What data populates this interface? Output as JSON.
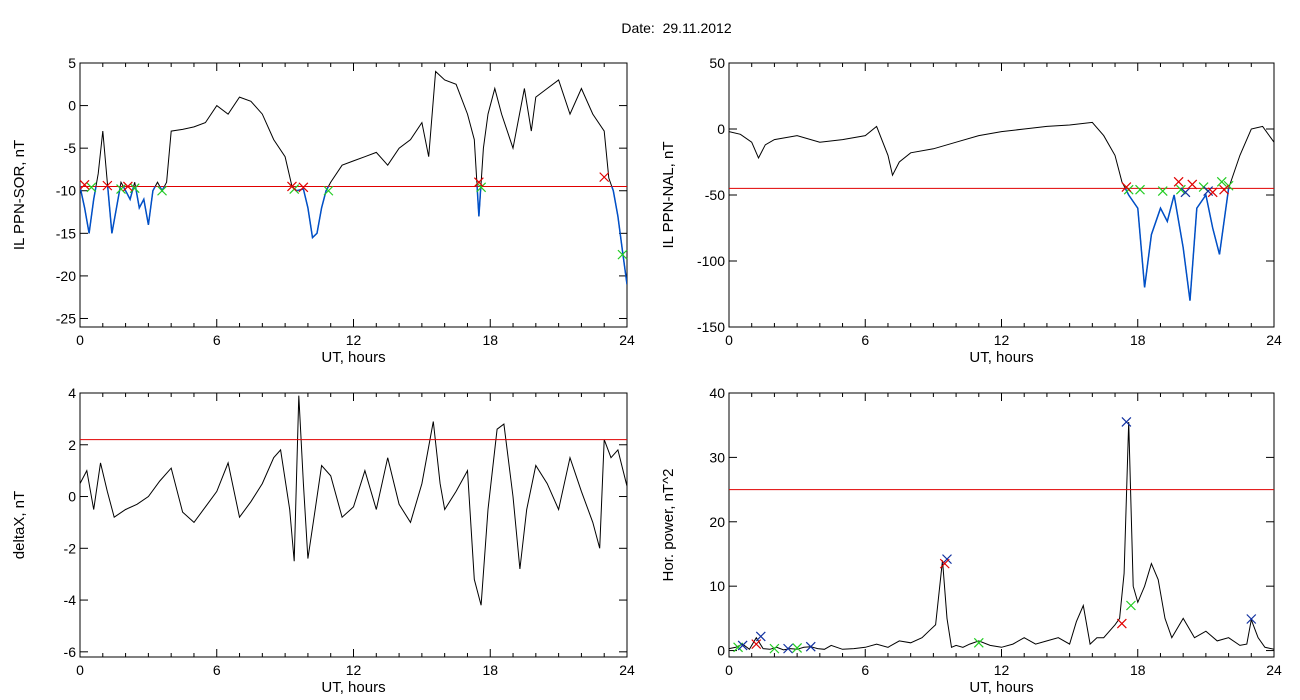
{
  "header": {
    "title": "Date:  29.11.2012"
  },
  "colors": {
    "trace": "#000000",
    "threshold": "#e00000",
    "highlight": "#0050c8",
    "marker_red": "#e00000",
    "marker_green": "#22cc22",
    "marker_blue": "#1030a0"
  },
  "chart_data": [
    {
      "type": "line",
      "name": "IL PPN-SOR",
      "xlabel": "UT, hours",
      "ylabel": "IL PPN-SOR, nT",
      "xlim": [
        0,
        24
      ],
      "ylim": [
        -26,
        5
      ],
      "xticks": [
        0,
        6,
        12,
        18,
        24
      ],
      "yticks": [
        5,
        0,
        -5,
        -10,
        -15,
        -20,
        -25
      ],
      "threshold": -9.5,
      "x": [
        0,
        0.2,
        0.4,
        0.6,
        0.8,
        1.0,
        1.2,
        1.4,
        1.6,
        1.8,
        2.0,
        2.2,
        2.4,
        2.6,
        2.8,
        3.0,
        3.2,
        3.4,
        3.6,
        3.8,
        4.0,
        4.5,
        5.0,
        5.5,
        6.0,
        6.5,
        7.0,
        7.5,
        8.0,
        8.5,
        9.0,
        9.3,
        9.5,
        9.8,
        10.0,
        10.2,
        10.4,
        10.6,
        10.8,
        11.0,
        11.5,
        12.0,
        12.5,
        13.0,
        13.5,
        14.0,
        14.5,
        15.0,
        15.3,
        15.6,
        16.0,
        16.5,
        17.0,
        17.3,
        17.5,
        17.7,
        17.9,
        18.2,
        18.5,
        19.0,
        19.5,
        19.8,
        20.0,
        20.5,
        21.0,
        21.5,
        22.0,
        22.5,
        23.0,
        23.2,
        23.4,
        23.6,
        23.8,
        24.0
      ],
      "y": [
        -9.5,
        -12,
        -15,
        -11,
        -8,
        -3,
        -9,
        -15,
        -12,
        -9,
        -10,
        -11,
        -9,
        -12,
        -11,
        -14,
        -10,
        -9,
        -10,
        -9,
        -3,
        -2.8,
        -2.5,
        -2,
        0,
        -1,
        1,
        0.5,
        -1,
        -4,
        -6,
        -9.5,
        -10,
        -9.8,
        -12,
        -15.5,
        -15,
        -12,
        -10,
        -9,
        -7,
        -6.5,
        -6,
        -5.5,
        -7,
        -5,
        -4,
        -2,
        -6,
        4,
        3,
        2.5,
        -1,
        -4,
        -13,
        -5,
        -1,
        2,
        -1,
        -5,
        2,
        -3,
        1,
        2,
        3,
        -1,
        2,
        -1,
        -3,
        -8.5,
        -10,
        -13,
        -17,
        -21
      ],
      "highlight_below": true,
      "markers_red": [
        [
          0.2,
          -9.3
        ],
        [
          1.2,
          -9.4
        ],
        [
          2.1,
          -9.5
        ],
        [
          9.3,
          -9.5
        ],
        [
          9.8,
          -9.6
        ],
        [
          17.5,
          -9.0
        ],
        [
          23.0,
          -8.4
        ]
      ],
      "markers_green": [
        [
          0.5,
          -9.6
        ],
        [
          1.8,
          -9.8
        ],
        [
          2.4,
          -9.7
        ],
        [
          3.6,
          -10.0
        ],
        [
          9.4,
          -9.8
        ],
        [
          10.9,
          -10.0
        ],
        [
          17.6,
          -9.6
        ],
        [
          23.8,
          -17.5
        ]
      ]
    },
    {
      "type": "line",
      "name": "IL PPN-NAL",
      "xlabel": "UT, hours",
      "ylabel": "IL PPN-NAL, nT",
      "xlim": [
        0,
        24
      ],
      "ylim": [
        -150,
        50
      ],
      "xticks": [
        0,
        6,
        12,
        18,
        24
      ],
      "yticks": [
        50,
        0,
        -50,
        -100,
        -150
      ],
      "threshold": -45,
      "x": [
        0,
        0.5,
        1.0,
        1.3,
        1.6,
        2.0,
        3.0,
        4.0,
        5.0,
        6.0,
        6.5,
        7.0,
        7.2,
        7.5,
        8.0,
        9.0,
        10.0,
        11.0,
        12.0,
        13.0,
        14.0,
        15.0,
        16.0,
        16.5,
        17.0,
        17.3,
        17.6,
        18.0,
        18.3,
        18.6,
        19.0,
        19.3,
        19.6,
        20.0,
        20.3,
        20.6,
        21.0,
        21.3,
        21.6,
        22.0,
        22.5,
        23.0,
        23.5,
        24.0
      ],
      "y": [
        -2,
        -4,
        -10,
        -22,
        -12,
        -8,
        -5,
        -10,
        -8,
        -5,
        2,
        -20,
        -35,
        -25,
        -18,
        -15,
        -10,
        -5,
        -2,
        0,
        2,
        3,
        5,
        -5,
        -20,
        -40,
        -50,
        -60,
        -120,
        -80,
        -60,
        -70,
        -50,
        -90,
        -130,
        -60,
        -50,
        -75,
        -95,
        -45,
        -20,
        0,
        2,
        -10
      ],
      "highlight_below": true,
      "markers_red": [
        [
          17.5,
          -44
        ],
        [
          19.8,
          -40
        ],
        [
          20.4,
          -42
        ],
        [
          21.3,
          -48
        ],
        [
          21.8,
          -46
        ]
      ],
      "markers_green": [
        [
          17.6,
          -46
        ],
        [
          18.1,
          -46
        ],
        [
          19.1,
          -47
        ],
        [
          19.9,
          -46
        ],
        [
          20.9,
          -44
        ],
        [
          21.7,
          -40
        ],
        [
          22.0,
          -43
        ]
      ],
      "markers_blue": [
        [
          20.1,
          -48
        ],
        [
          21.1,
          -47
        ]
      ]
    },
    {
      "type": "line",
      "name": "deltaX",
      "xlabel": "UT, hours",
      "ylabel": "deltaX, nT",
      "xlim": [
        0,
        24
      ],
      "ylim": [
        -6.2,
        4
      ],
      "xticks": [
        0,
        6,
        12,
        18,
        24
      ],
      "yticks": [
        4,
        2,
        0,
        -2,
        -4,
        -6
      ],
      "threshold": 2.2,
      "x": [
        0,
        0.3,
        0.6,
        0.9,
        1.2,
        1.5,
        2.0,
        2.5,
        3.0,
        3.5,
        4.0,
        4.5,
        5.0,
        5.5,
        6.0,
        6.5,
        7.0,
        7.5,
        8.0,
        8.5,
        8.8,
        9.2,
        9.4,
        9.6,
        9.8,
        10.0,
        10.3,
        10.6,
        11.0,
        11.5,
        12.0,
        12.5,
        13.0,
        13.5,
        14.0,
        14.5,
        15.0,
        15.5,
        15.8,
        16.0,
        16.5,
        17.0,
        17.3,
        17.6,
        17.9,
        18.3,
        18.6,
        19.0,
        19.3,
        19.6,
        20.0,
        20.5,
        21.0,
        21.5,
        22.0,
        22.5,
        22.8,
        23.0,
        23.3,
        23.6,
        24.0
      ],
      "y": [
        0.5,
        1.0,
        -0.5,
        1.3,
        0.2,
        -0.8,
        -0.5,
        -0.3,
        0,
        0.6,
        1.1,
        -0.6,
        -1.0,
        -0.4,
        0.2,
        1.3,
        -0.8,
        -0.2,
        0.5,
        1.5,
        1.8,
        -0.5,
        -2.5,
        3.9,
        0.5,
        -2.4,
        -0.6,
        1.2,
        0.8,
        -0.8,
        -0.4,
        1.0,
        -0.5,
        1.5,
        -0.3,
        -1.0,
        0.5,
        2.9,
        0.5,
        -0.5,
        0.2,
        1.0,
        -3.2,
        -4.2,
        -0.5,
        2.6,
        2.8,
        0,
        -2.8,
        -0.5,
        1.2,
        0.5,
        -0.5,
        1.5,
        0.2,
        -1.0,
        -2.0,
        2.2,
        1.5,
        1.8,
        0.4
      ],
      "highlight_below": false
    },
    {
      "type": "line",
      "name": "Hor. power",
      "xlabel": "UT, hours",
      "ylabel": "Hor. power, nT^2",
      "xlim": [
        0,
        24
      ],
      "ylim": [
        -1,
        40
      ],
      "xticks": [
        0,
        6,
        12,
        18,
        24
      ],
      "yticks": [
        40,
        30,
        20,
        10,
        0
      ],
      "threshold": 25,
      "x": [
        0,
        0.3,
        0.6,
        0.9,
        1.2,
        1.5,
        1.8,
        2.1,
        2.4,
        2.7,
        3.0,
        3.3,
        3.6,
        3.9,
        4.2,
        4.5,
        5.0,
        5.5,
        6.0,
        6.5,
        7.0,
        7.5,
        8.0,
        8.5,
        8.8,
        9.1,
        9.4,
        9.6,
        9.8,
        10.0,
        10.3,
        10.6,
        11.0,
        11.5,
        12.0,
        12.5,
        13.0,
        13.5,
        14.0,
        14.5,
        15.0,
        15.3,
        15.6,
        15.9,
        16.2,
        16.5,
        17.0,
        17.2,
        17.4,
        17.6,
        17.8,
        18.0,
        18.3,
        18.6,
        18.9,
        19.2,
        19.5,
        20.0,
        20.5,
        21.0,
        21.5,
        22.0,
        22.5,
        22.8,
        23.0,
        23.3,
        23.6,
        24.0
      ],
      "y": [
        0.3,
        0.5,
        1.0,
        0.2,
        2.0,
        0.3,
        0.2,
        0.5,
        0.1,
        0.3,
        0.2,
        0.5,
        0.6,
        0.3,
        0.2,
        0.8,
        0.2,
        0.3,
        0.5,
        1.0,
        0.5,
        1.5,
        1.2,
        2.0,
        3.0,
        4.0,
        14.0,
        5.0,
        0.5,
        0.8,
        0.5,
        1.0,
        1.5,
        0.8,
        0.5,
        1.0,
        2.0,
        1.0,
        1.5,
        2.0,
        1.0,
        4.5,
        7.0,
        1.0,
        2.0,
        2.0,
        4.0,
        5.0,
        12.0,
        35.5,
        10.0,
        7.5,
        10.0,
        13.5,
        11.0,
        5.0,
        2.0,
        5.0,
        2.0,
        3.0,
        1.5,
        2.0,
        0.8,
        1.0,
        4.8,
        2.0,
        0.5,
        0.2
      ],
      "highlight_below": false,
      "markers_red": [
        [
          1.2,
          1.0
        ],
        [
          9.5,
          13.5
        ],
        [
          17.3,
          4.2
        ]
      ],
      "markers_green": [
        [
          0.4,
          0.5
        ],
        [
          2.0,
          0.3
        ],
        [
          3.0,
          0.4
        ],
        [
          11.0,
          1.2
        ],
        [
          17.7,
          7.0
        ]
      ],
      "markers_blue": [
        [
          0.6,
          0.8
        ],
        [
          1.4,
          2.2
        ],
        [
          2.6,
          0.3
        ],
        [
          3.6,
          0.6
        ],
        [
          9.6,
          14.2
        ],
        [
          17.5,
          35.5
        ],
        [
          23.0,
          4.9
        ]
      ]
    }
  ]
}
